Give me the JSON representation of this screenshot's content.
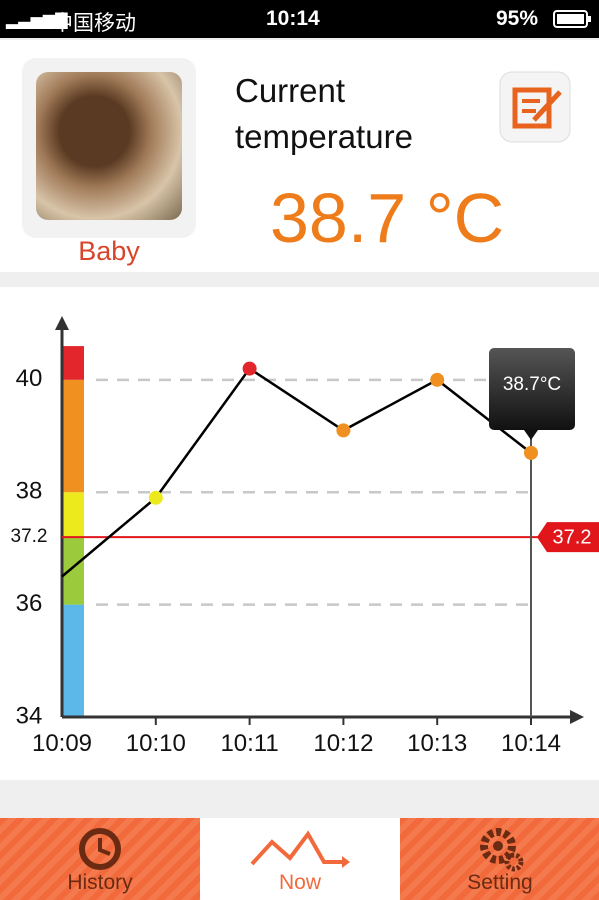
{
  "status_bar": {
    "carrier": "中国移动",
    "time": "10:14",
    "battery": "95%"
  },
  "profile": {
    "name": "Baby"
  },
  "reading": {
    "label": "Current temperature",
    "value": "38.7 °C"
  },
  "chart_data": {
    "type": "line",
    "x": [
      "10:09",
      "10:10",
      "10:11",
      "10:12",
      "10:13",
      "10:14"
    ],
    "values": [
      36.5,
      37.9,
      40.2,
      39.1,
      40.0,
      38.7
    ],
    "color": "#000000",
    "ylim": [
      34,
      41.1
    ],
    "yticks": [
      34,
      36,
      37.2,
      38,
      40
    ],
    "grid": true,
    "threshold": 37.2,
    "threshold_color": "#e0161b",
    "zones": [
      {
        "from": 34,
        "to": 36,
        "color": "#5bb8e8"
      },
      {
        "from": 36,
        "to": 37.2,
        "color": "#9bcb3c"
      },
      {
        "from": 37.2,
        "to": 38,
        "color": "#ecea1c"
      },
      {
        "from": 38,
        "to": 40,
        "color": "#f09020"
      },
      {
        "from": 40,
        "to": 40.6,
        "color": "#e3262b"
      }
    ],
    "tooltip": "38.7°C"
  },
  "tabs": [
    {
      "label": "History"
    },
    {
      "label": "Now"
    },
    {
      "label": "Setting"
    }
  ],
  "active_tab": 1
}
